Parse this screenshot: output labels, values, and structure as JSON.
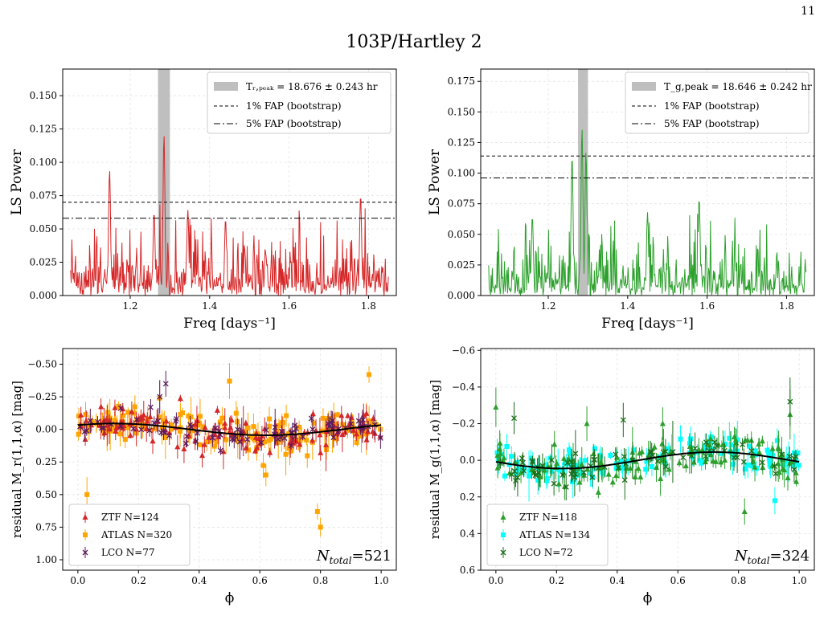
{
  "page_number": "11",
  "figure_title": "103P/Hartley 2",
  "chart_data": [
    {
      "id": "ls_r",
      "type": "line",
      "color": "#d62728",
      "xlabel": "Freq [days⁻¹]",
      "ylabel": "LS Power",
      "xlim": [
        1.03,
        1.87
      ],
      "ylim": [
        0,
        0.17
      ],
      "xticks": [
        1.2,
        1.4,
        1.6,
        1.8
      ],
      "xtick_labels": [
        "1.2",
        "1.4",
        "1.6",
        "1.8"
      ],
      "yticks": [
        0,
        0.025,
        0.05,
        0.075,
        0.1,
        0.125,
        0.15
      ],
      "ytick_labels": [
        "0.000",
        "0.025",
        "0.050",
        "0.075",
        "0.100",
        "0.125",
        "0.150"
      ],
      "peak_band": [
        1.27,
        1.3
      ],
      "fap1": 0.07,
      "fap5": 0.058,
      "legend": [
        "Tᵣ,ₚₑₐₖ = 18.676 ± 0.243 hr",
        "1% FAP (bootstrap)",
        "5% FAP (bootstrap)"
      ],
      "peaks": [
        [
          1.148,
          0.095
        ],
        [
          1.285,
          0.121
        ],
        [
          1.26,
          0.063
        ],
        [
          1.78,
          0.076
        ],
        [
          1.345,
          0.065
        ],
        [
          1.44,
          0.058
        ]
      ],
      "grid": true
    },
    {
      "id": "ls_g",
      "type": "line",
      "color": "#2ca02c",
      "xlabel": "Freq [days⁻¹]",
      "ylabel": "LS Power",
      "xlim": [
        1.03,
        1.87
      ],
      "ylim": [
        0,
        0.185
      ],
      "xticks": [
        1.2,
        1.4,
        1.6,
        1.8
      ],
      "xtick_labels": [
        "1.2",
        "1.4",
        "1.6",
        "1.8"
      ],
      "yticks": [
        0,
        0.025,
        0.05,
        0.075,
        0.1,
        0.125,
        0.15,
        0.175
      ],
      "ytick_labels": [
        "0.000",
        "0.025",
        "0.050",
        "0.075",
        "0.100",
        "0.125",
        "0.150",
        "0.175"
      ],
      "peak_band": [
        1.275,
        1.3
      ],
      "fap1": 0.114,
      "fap5": 0.096,
      "legend": [
        "T_g,peak = 18.646 ± 0.242 hr",
        "1% FAP (bootstrap)",
        "5% FAP (bootstrap)"
      ],
      "peaks": [
        [
          1.26,
          0.115
        ],
        [
          1.285,
          0.137
        ],
        [
          1.295,
          0.118
        ],
        [
          1.58,
          0.08
        ],
        [
          1.86,
          0.0
        ],
        [
          1.45,
          0.068
        ],
        [
          1.16,
          0.065
        ]
      ],
      "grid": true
    },
    {
      "id": "res_r",
      "type": "scatter",
      "xlabel": "ϕ",
      "ylabel": "residual M_r(1,1,α) [mag]",
      "xlim": [
        -0.05,
        1.05
      ],
      "ylim": [
        1.08,
        -0.62
      ],
      "xticks": [
        0,
        0.2,
        0.4,
        0.6,
        0.8,
        1.0
      ],
      "xtick_labels": [
        "0.0",
        "0.2",
        "0.4",
        "0.6",
        "0.8",
        "1.0"
      ],
      "yticks": [
        -0.5,
        -0.25,
        0,
        0.25,
        0.5,
        0.75,
        1.0
      ],
      "ytick_labels": [
        "−0.50",
        "−0.25",
        "0.00",
        "0.25",
        "0.50",
        "0.75",
        "1.00"
      ],
      "series": [
        {
          "name": "ZTF N=124",
          "color": "#d62728",
          "marker": "triangle",
          "n": 124,
          "spread": 0.11,
          "outliers": [
            [
              0.41,
              0.2
            ],
            [
              0.35,
              0.15
            ],
            [
              0.48,
              0.17
            ],
            [
              0.8,
              0.18
            ]
          ]
        },
        {
          "name": "ATLAS N=320",
          "color": "#ffa500",
          "marker": "square",
          "n": 320,
          "spread": 0.12,
          "outliers": [
            [
              0.03,
              0.5
            ],
            [
              0.96,
              -0.42
            ],
            [
              0.79,
              0.63
            ],
            [
              0.8,
              0.75
            ],
            [
              0.5,
              -0.37
            ],
            [
              0.62,
              0.35
            ]
          ]
        },
        {
          "name": "LCO N=77",
          "color": "#5b1a5b",
          "marker": "x",
          "n": 77,
          "spread": 0.09,
          "outliers": [
            [
              0.29,
              -0.35
            ],
            [
              0.27,
              -0.25
            ],
            [
              0.24,
              -0.17
            ]
          ]
        }
      ],
      "fit": {
        "amplitude": 0.045,
        "phase": 0.12
      },
      "total_label": "N_total=521",
      "grid": true
    },
    {
      "id": "res_g",
      "type": "scatter",
      "xlabel": "ϕ",
      "ylabel": "residual M_g(1,1,α) [mag]",
      "xlim": [
        -0.05,
        1.05
      ],
      "ylim": [
        0.6,
        -0.61
      ],
      "xticks": [
        0,
        0.2,
        0.4,
        0.6,
        0.8,
        1.0
      ],
      "xtick_labels": [
        "0.0",
        "0.2",
        "0.4",
        "0.6",
        "0.8",
        "1.0"
      ],
      "yticks": [
        -0.6,
        -0.4,
        -0.2,
        0,
        0.2,
        0.4,
        0.6
      ],
      "ytick_labels": [
        "−0.6",
        "−0.4",
        "−0.2",
        "0.0",
        "0.2",
        "0.4",
        "0.6"
      ],
      "series": [
        {
          "name": "ZTF N=118",
          "color": "#2ca02c",
          "marker": "triangle",
          "n": 118,
          "spread": 0.09,
          "outliers": [
            [
              0.0,
              -0.29
            ],
            [
              0.3,
              -0.2
            ],
            [
              0.82,
              0.28
            ],
            [
              0.97,
              -0.25
            ],
            [
              0.55,
              -0.2
            ]
          ]
        },
        {
          "name": "ATLAS N=134",
          "color": "#00ffff",
          "marker": "square",
          "n": 134,
          "spread": 0.07,
          "outliers": [
            [
              0.92,
              0.22
            ],
            [
              0.77,
              -0.12
            ]
          ]
        },
        {
          "name": "LCO N=72",
          "color": "#1a6e1a",
          "marker": "x",
          "n": 72,
          "spread": 0.09,
          "outliers": [
            [
              0.97,
              -0.32
            ],
            [
              0.06,
              -0.23
            ],
            [
              0.42,
              -0.22
            ]
          ]
        }
      ],
      "fit": {
        "amplitude": 0.045,
        "phase": 0.72
      },
      "total_label": "N_total=324",
      "grid": true
    }
  ]
}
